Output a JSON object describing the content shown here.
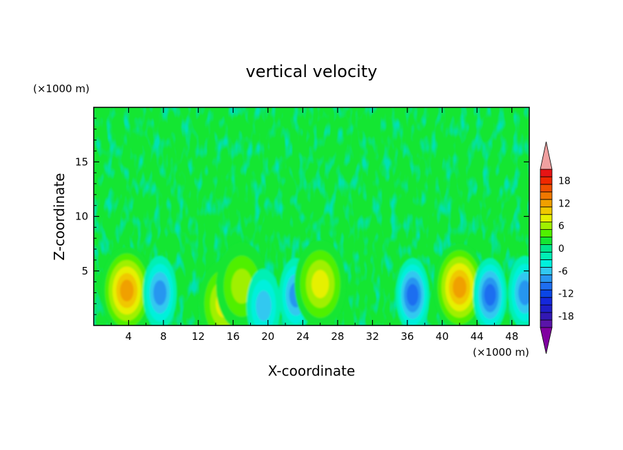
{
  "chart_data": {
    "type": "heatmap",
    "title": "vertical velocity",
    "xlabel": "X-coordinate",
    "ylabel": "Z-coordinate",
    "x_unit": "(×1000 m)",
    "y_unit": "(×1000 m)",
    "xlim": [
      0,
      50
    ],
    "ylim": [
      0,
      20
    ],
    "x_ticks": [
      "4",
      "8",
      "12",
      "16",
      "20",
      "24",
      "28",
      "32",
      "36",
      "40",
      "44",
      "48"
    ],
    "y_ticks": [
      "5",
      "10",
      "15"
    ],
    "colorbar": {
      "levels": [
        -21,
        -19,
        -17,
        -15,
        -13,
        -11,
        -9,
        -7,
        -5,
        -3,
        -1,
        1,
        3,
        5,
        7,
        9,
        11,
        13,
        15,
        17,
        19,
        21
      ],
      "tick_labels": [
        "18",
        "12",
        "6",
        "0",
        "-6",
        "-12",
        "-18"
      ],
      "colors": [
        "#8000a0",
        "#5a14a8",
        "#3218b4",
        "#1e1ec8",
        "#1428dc",
        "#0a46e6",
        "#1e6ef0",
        "#2896f0",
        "#32c8f0",
        "#00f0dc",
        "#00f0b4",
        "#00e68c",
        "#14e632",
        "#50f000",
        "#a0f000",
        "#e6f000",
        "#f0c800",
        "#f0a000",
        "#f07800",
        "#f05000",
        "#f02800",
        "#e61414",
        "#f0a0a0"
      ]
    },
    "features": [
      {
        "kind": "updraft",
        "x": 3.8,
        "z": 3.2,
        "peak_w": 13
      },
      {
        "kind": "downdraft",
        "x": 7.6,
        "z": 3.0,
        "peak_w": -9
      },
      {
        "kind": "updraft",
        "x": 15.0,
        "z": 2.0,
        "peak_w": 8
      },
      {
        "kind": "updraft",
        "x": 17.0,
        "z": 3.6,
        "peak_w": 6
      },
      {
        "kind": "downdraft",
        "x": 19.5,
        "z": 1.8,
        "peak_w": -7
      },
      {
        "kind": "downdraft",
        "x": 23.2,
        "z": 2.8,
        "peak_w": -9
      },
      {
        "kind": "updraft",
        "x": 26.0,
        "z": 3.8,
        "peak_w": 8
      },
      {
        "kind": "downdraft",
        "x": 36.6,
        "z": 2.8,
        "peak_w": -11
      },
      {
        "kind": "updraft",
        "x": 42.0,
        "z": 3.5,
        "peak_w": 13
      },
      {
        "kind": "downdraft",
        "x": 45.5,
        "z": 2.8,
        "peak_w": -10
      },
      {
        "kind": "downdraft",
        "x": 49.5,
        "z": 3.0,
        "peak_w": -9
      }
    ]
  }
}
